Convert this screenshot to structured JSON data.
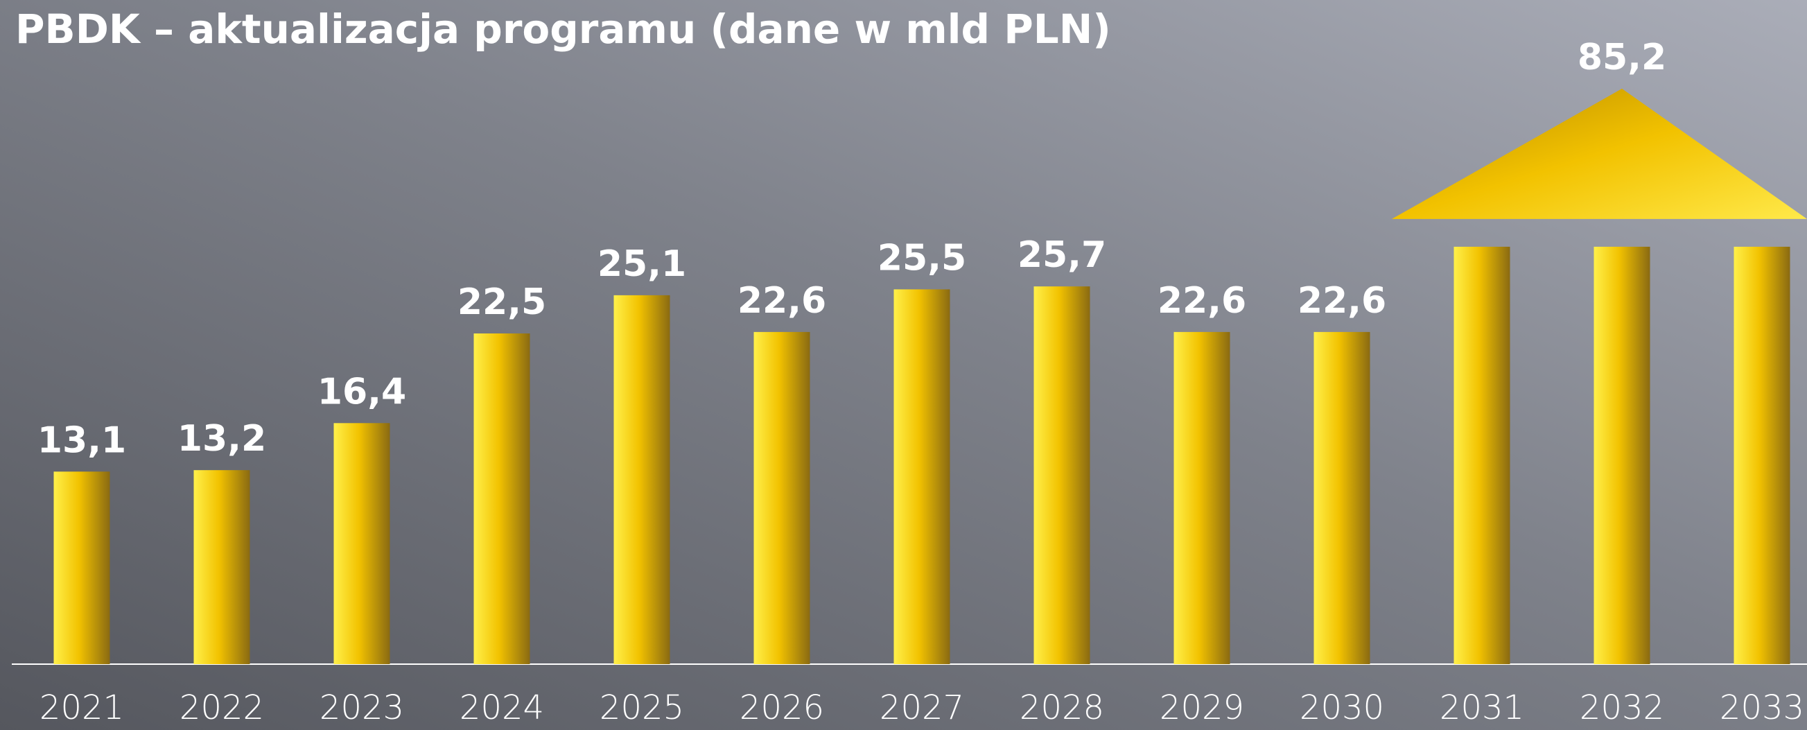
{
  "chart_data": {
    "type": "bar",
    "title": "PBDK – aktualizacja programu (dane w mld PLN)",
    "categories": [
      "2021",
      "2022",
      "2023",
      "2024",
      "2025",
      "2026",
      "2027",
      "2028",
      "2029",
      "2030",
      "2031",
      "2032",
      "2033"
    ],
    "values": [
      13.1,
      13.2,
      16.4,
      22.5,
      25.1,
      22.6,
      25.5,
      25.7,
      22.6,
      22.6,
      28.4,
      28.4,
      28.4
    ],
    "value_labels": [
      "13,1",
      "13,2",
      "16,4",
      "22,5",
      "25,1",
      "22,6",
      "25,5",
      "25,7",
      "22,6",
      "22,6",
      null,
      null,
      null
    ],
    "color": "#f2c200",
    "annotations": [
      {
        "text": "85,2",
        "value": 85.2,
        "categories": [
          "2031",
          "2032",
          "2033"
        ]
      }
    ]
  }
}
